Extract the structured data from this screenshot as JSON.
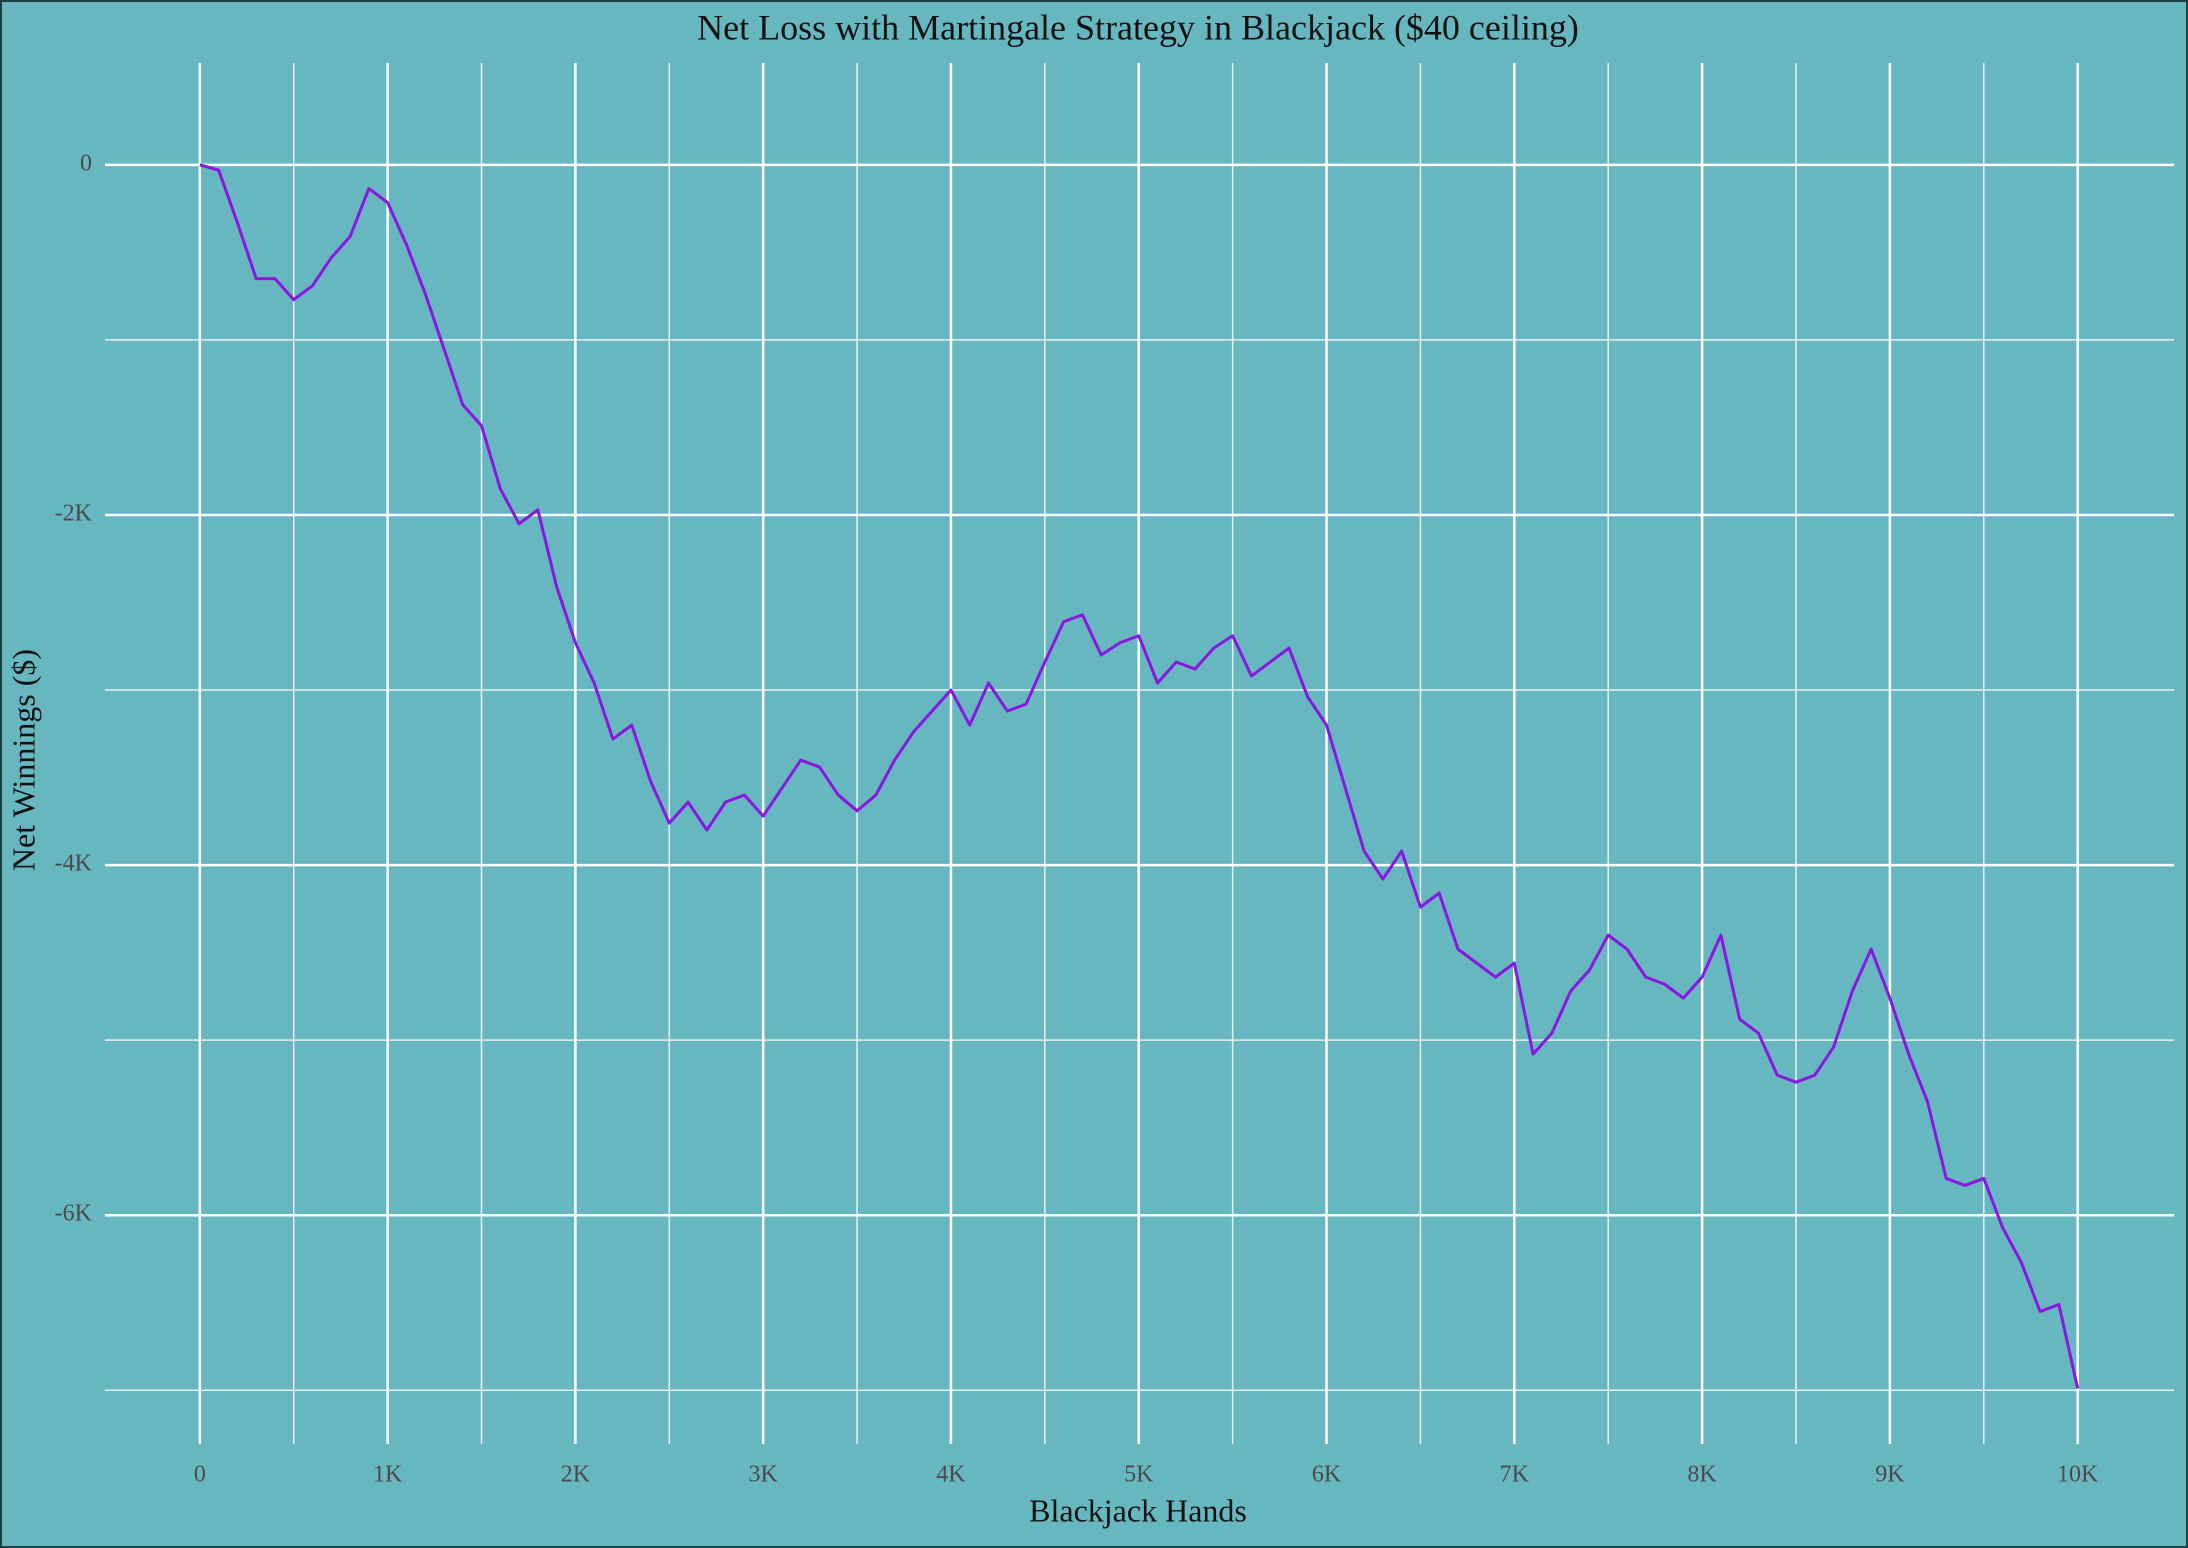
{
  "chart_data": {
    "type": "line",
    "title": "Net Loss with Martingale Strategy in Blackjack ($40 ceiling)",
    "x_label": "Blackjack Hands",
    "y_label": "Net Winnings ($)",
    "color": "#8a17e0",
    "background": "#67b7c1",
    "grid": true,
    "x": [
      0,
      100,
      200,
      300,
      400,
      500,
      600,
      700,
      800,
      900,
      1000,
      1100,
      1200,
      1300,
      1400,
      1500,
      1600,
      1700,
      1800,
      1900,
      2000,
      2100,
      2200,
      2300,
      2400,
      2500,
      2600,
      2700,
      2800,
      2900,
      3000,
      3100,
      3200,
      3300,
      3400,
      3500,
      3600,
      3700,
      3800,
      3900,
      4000,
      4100,
      4200,
      4300,
      4400,
      4500,
      4600,
      4700,
      4800,
      4900,
      5000,
      5100,
      5200,
      5300,
      5400,
      5500,
      5600,
      5700,
      5800,
      5900,
      6000,
      6100,
      6200,
      6300,
      6400,
      6500,
      6600,
      6700,
      6800,
      6900,
      7000,
      7100,
      7200,
      7300,
      7400,
      7500,
      7600,
      7700,
      7800,
      7900,
      8000,
      8100,
      8200,
      8300,
      8400,
      8500,
      8600,
      8700,
      8800,
      8900,
      9000,
      9100,
      9200,
      9300,
      9400,
      9500,
      9600,
      9700,
      9800,
      9900,
      10000
    ],
    "values": [
      0,
      -30,
      -330,
      -650,
      -650,
      -770,
      -690,
      -530,
      -410,
      -135,
      -215,
      -455,
      -735,
      -1050,
      -1370,
      -1490,
      -1850,
      -2050,
      -1970,
      -2410,
      -2730,
      -2960,
      -3280,
      -3200,
      -3520,
      -3760,
      -3640,
      -3800,
      -3640,
      -3600,
      -3720,
      -3560,
      -3400,
      -3440,
      -3600,
      -3690,
      -3600,
      -3400,
      -3240,
      -3120,
      -3000,
      -3200,
      -2960,
      -3120,
      -3080,
      -2840,
      -2610,
      -2570,
      -2800,
      -2730,
      -2690,
      -2960,
      -2840,
      -2880,
      -2760,
      -2690,
      -2920,
      -2840,
      -2760,
      -3040,
      -3200,
      -3560,
      -3920,
      -4080,
      -3920,
      -4240,
      -4160,
      -4480,
      -4560,
      -4640,
      -4560,
      -5080,
      -4960,
      -4720,
      -4600,
      -4400,
      -4480,
      -4640,
      -4680,
      -4760,
      -4640,
      -4400,
      -4880,
      -4960,
      -5200,
      -5240,
      -5200,
      -5040,
      -4720,
      -4480,
      -4760,
      -5080,
      -5350,
      -5790,
      -5830,
      -5790,
      -6070,
      -6270,
      -6550,
      -6510,
      -6990
    ],
    "xlim": [
      -505,
      10513
    ],
    "ylim": [
      -7307,
      582
    ],
    "xticks": [
      0,
      {
        "value": 1000,
        "label": "1K"
      },
      {
        "value": 2000,
        "label": "2K"
      },
      {
        "value": 3000,
        "label": "3K"
      },
      {
        "value": 4000,
        "label": "4K"
      },
      {
        "value": 5000,
        "label": "5K"
      },
      {
        "value": 6000,
        "label": "6K"
      },
      {
        "value": 7000,
        "label": "7K"
      },
      {
        "value": 8000,
        "label": "8K"
      },
      {
        "value": 9000,
        "label": "9K"
      },
      {
        "value": 10000,
        "label": "10K"
      }
    ],
    "yticks": [
      0,
      {
        "value": -2000,
        "label": "-2K"
      },
      {
        "value": -4000,
        "label": "-4K"
      },
      {
        "value": -6000,
        "label": "-6K"
      }
    ],
    "x_minor_ticks": [
      500,
      1500,
      2500,
      3500,
      4500,
      5500,
      6500,
      7500,
      8500,
      9500
    ],
    "y_minor_ticks": [
      -1000,
      -3000,
      -5000,
      -7000
    ]
  }
}
